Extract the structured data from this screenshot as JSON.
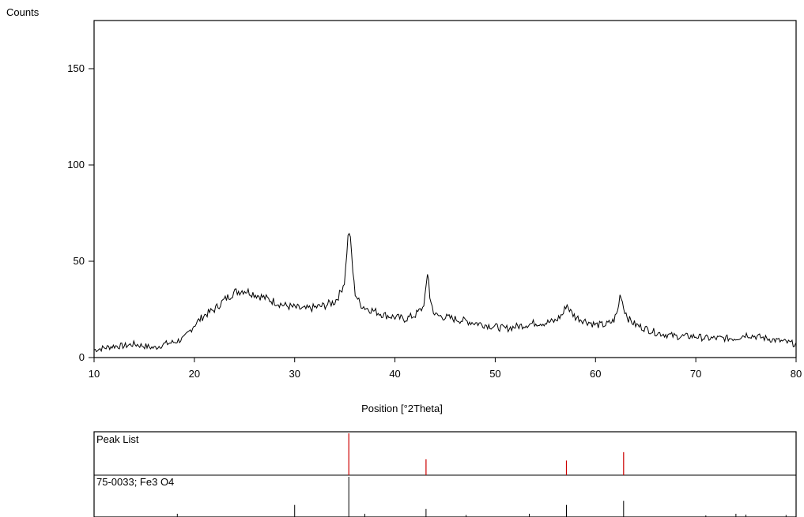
{
  "chart_data": {
    "type": "line",
    "title": "",
    "xlabel": "Position [°2Theta]",
    "ylabel": "Counts",
    "xlim": [
      10,
      80
    ],
    "ylim": [
      0,
      175
    ],
    "xticks": [
      10,
      20,
      30,
      40,
      50,
      60,
      70,
      80
    ],
    "yticks": [
      0,
      50,
      100,
      150
    ],
    "grid": false,
    "series": [
      {
        "color": "#000000",
        "x": [
          10,
          11,
          12,
          13,
          14,
          15,
          16,
          17,
          18,
          19,
          20,
          21,
          22,
          23,
          24,
          25,
          26,
          27,
          28,
          29,
          30,
          31,
          32,
          33,
          34,
          34.5,
          35,
          35.2,
          35.4,
          35.6,
          35.8,
          36,
          36.5,
          37,
          38,
          39,
          40,
          41,
          42,
          42.8,
          43.1,
          43.3,
          43.5,
          43.8,
          44,
          45,
          46,
          47,
          48,
          49,
          50,
          51,
          52,
          53,
          54,
          55,
          56,
          56.8,
          57.1,
          57.5,
          58,
          59,
          60,
          61,
          61.8,
          62.2,
          62.5,
          62.8,
          63.3,
          64,
          65,
          66,
          67,
          68,
          69,
          70,
          71,
          72,
          73,
          74,
          75,
          76,
          77,
          78,
          79,
          80
        ],
        "y": [
          4,
          5,
          6,
          6,
          7,
          6,
          5,
          7,
          8,
          10,
          17,
          22,
          25,
          30,
          34,
          35,
          33,
          31,
          29,
          27,
          26,
          25,
          26,
          27,
          29,
          33,
          40,
          55,
          67,
          59,
          45,
          34,
          28,
          26,
          24,
          22,
          21,
          20,
          22,
          26,
          35,
          46,
          30,
          25,
          22,
          21,
          20,
          19,
          18,
          17,
          16,
          15,
          16,
          17,
          18,
          18,
          19,
          23,
          28,
          24,
          21,
          19,
          17,
          17,
          19,
          24,
          34,
          26,
          20,
          17,
          15,
          13,
          12,
          11,
          11,
          11,
          10,
          10,
          10,
          10,
          12,
          11,
          10,
          9,
          8,
          7
        ]
      }
    ]
  },
  "peak_list": {
    "label": "Peak List",
    "color": "#cc0000",
    "positions": [
      35.4,
      43.1,
      57.1,
      62.8
    ],
    "heights": [
      1.0,
      0.38,
      0.35,
      0.55
    ]
  },
  "reference": {
    "label": "75-0033; Fe3 O4",
    "color": "#000000",
    "positions": [
      18.3,
      30.0,
      35.4,
      37.0,
      43.1,
      47.1,
      53.4,
      57.1,
      62.8,
      71.0,
      74.0,
      75.0,
      79.0
    ],
    "heights": [
      0.08,
      0.3,
      1.0,
      0.08,
      0.2,
      0.05,
      0.08,
      0.3,
      0.4,
      0.04,
      0.08,
      0.06,
      0.05
    ]
  }
}
